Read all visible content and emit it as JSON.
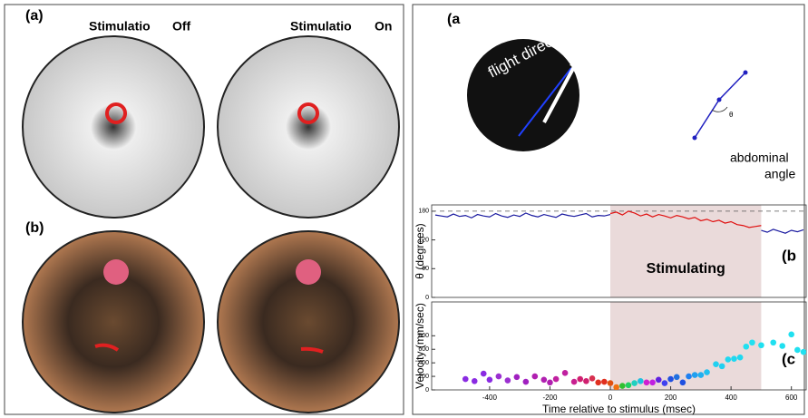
{
  "left_panel": {
    "label_a": "(a)",
    "stim_off": "Stimulatio",
    "off": "Off",
    "stim_on": "Stimulatio",
    "on": "On",
    "label_b": "(b)"
  },
  "right_panel": {
    "label_a": "(a",
    "flight_direction": "flight direction",
    "angle_symbol": "θ",
    "abdominal": "abdominal",
    "angle": "angle",
    "label_b": "(b",
    "label_c": "(c"
  },
  "chart_data": [
    {
      "type": "line",
      "ylabel": "θ (degrees)",
      "annotation": "Stimulating",
      "xlim": [
        -592,
        649
      ],
      "ylim": [
        0,
        193
      ],
      "yticks": [
        0,
        60,
        120,
        180
      ],
      "stim_window": [
        0,
        500
      ],
      "reference_line": 180,
      "series": [
        {
          "color": "#1a1aa0",
          "x": [
            -580,
            -560,
            -540,
            -520,
            -500,
            -480,
            -460,
            -440,
            -420,
            -400,
            -380,
            -360,
            -340,
            -320,
            -300,
            -280,
            -260,
            -240,
            -220,
            -200,
            -180,
            -160,
            -140,
            -120,
            -100,
            -80,
            -60,
            -40,
            -20,
            0
          ],
          "values": [
            172,
            170,
            168,
            174,
            169,
            171,
            166,
            173,
            170,
            168,
            175,
            170,
            167,
            172,
            169,
            176,
            171,
            168,
            173,
            170,
            167,
            174,
            171,
            169,
            172,
            175,
            168,
            171,
            170,
            173
          ]
        },
        {
          "color": "#e01010",
          "x": [
            0,
            20,
            40,
            60,
            80,
            100,
            120,
            140,
            160,
            180,
            200,
            220,
            240,
            260,
            280,
            300,
            320,
            340,
            360,
            380,
            400,
            420,
            440,
            460,
            480,
            500
          ],
          "values": [
            175,
            178,
            172,
            180,
            176,
            170,
            174,
            168,
            173,
            170,
            166,
            171,
            168,
            164,
            167,
            160,
            163,
            158,
            161,
            155,
            158,
            152,
            150,
            146,
            148,
            150
          ]
        },
        {
          "color": "#1a1aa0",
          "x": [
            500,
            520,
            540,
            560,
            580,
            600,
            620,
            640
          ],
          "values": [
            140,
            136,
            142,
            138,
            134,
            140,
            137,
            141
          ]
        }
      ]
    },
    {
      "type": "scatter",
      "ylabel": "Velocity (mm/sec)",
      "xlabel": "Time relative to stimulus (msec)",
      "xlim": [
        -592,
        649
      ],
      "ylim": [
        0,
        1300
      ],
      "yticks": [
        0,
        200,
        400,
        600,
        800
      ],
      "xticks": [
        -400,
        -200,
        0,
        200,
        400,
        600
      ],
      "stim_window": [
        0,
        500
      ],
      "x": [
        -480,
        -450,
        -420,
        -400,
        -370,
        -340,
        -310,
        -280,
        -250,
        -220,
        -200,
        -180,
        -150,
        -120,
        -100,
        -80,
        -60,
        -40,
        -20,
        0,
        20,
        40,
        60,
        80,
        100,
        120,
        140,
        160,
        180,
        200,
        220,
        240,
        260,
        280,
        300,
        320,
        350,
        370,
        390,
        410,
        430,
        450,
        470,
        500,
        540,
        570,
        600,
        620,
        640
      ],
      "values": [
        160,
        130,
        240,
        150,
        200,
        140,
        190,
        120,
        200,
        150,
        110,
        160,
        250,
        120,
        160,
        130,
        170,
        110,
        120,
        100,
        40,
        60,
        70,
        100,
        130,
        110,
        110,
        150,
        100,
        160,
        190,
        110,
        200,
        220,
        220,
        260,
        380,
        350,
        450,
        460,
        480,
        640,
        700,
        660,
        700,
        650,
        820,
        590,
        560
      ],
      "colors": [
        "#8a2be2",
        "#8a2be2",
        "#8a2be2",
        "#8a2be2",
        "#9b30d0",
        "#9b30d0",
        "#a020c0",
        "#a020c0",
        "#b020b0",
        "#b020b0",
        "#b020b0",
        "#c020a0",
        "#c020a0",
        "#c82090",
        "#d02070",
        "#d02070",
        "#d83050",
        "#e03020",
        "#e03020",
        "#e05010",
        "#f07010",
        "#30c030",
        "#20d060",
        "#20d0c0",
        "#20c0e0",
        "#d020d0",
        "#c020e0",
        "#6020e0",
        "#4040f0",
        "#2050e0",
        "#2070e0",
        "#2050e0",
        "#2080f0",
        "#20a0f0",
        "#20b0f0",
        "#20c0f0",
        "#20d0f0",
        "#20d0f0",
        "#20d8f0",
        "#20d8f0",
        "#20d8f0",
        "#20e0f0",
        "#20e0f0",
        "#20e0f0",
        "#20e0f0",
        "#20e0f0",
        "#20e0f0",
        "#20e0f0",
        "#20e0f0"
      ]
    }
  ]
}
